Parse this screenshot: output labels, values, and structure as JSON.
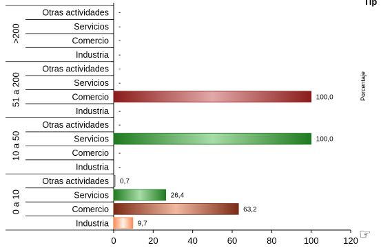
{
  "header": {
    "title_partial": "Tip"
  },
  "side": {
    "label": "Porcentaje"
  },
  "icons": {
    "cursor": "pointing-hand-icon"
  },
  "chart_data": {
    "type": "bar",
    "orientation": "horizontal",
    "title": "",
    "xlabel": "",
    "ylabel": "Porcentaje",
    "xlim": [
      0,
      120
    ],
    "x_ticks": [
      0,
      20,
      40,
      60,
      80,
      100,
      120
    ],
    "grid": false,
    "groups": [
      {
        "label": ">200",
        "rows": [
          {
            "category": "Otras actividades",
            "value": null,
            "label": "-"
          },
          {
            "category": "Servicios",
            "value": null,
            "label": "-"
          },
          {
            "category": "Comercio",
            "value": null,
            "label": "-"
          },
          {
            "category": "Industria",
            "value": null,
            "label": "-"
          }
        ]
      },
      {
        "label": "51 a 200",
        "rows": [
          {
            "category": "Otras actividades",
            "value": null,
            "label": "-"
          },
          {
            "category": "Servicios",
            "value": null,
            "label": "-"
          },
          {
            "category": "Comercio",
            "value": 100.0,
            "label": "100,0"
          },
          {
            "category": "Industria",
            "value": null,
            "label": "-"
          }
        ]
      },
      {
        "label": "10 a 50",
        "rows": [
          {
            "category": "Otras actividades",
            "value": null,
            "label": "-"
          },
          {
            "category": "Servicios",
            "value": 100.0,
            "label": "100,0"
          },
          {
            "category": "Comercio",
            "value": null,
            "label": "-"
          },
          {
            "category": "Industria",
            "value": null,
            "label": "-"
          }
        ]
      },
      {
        "label": "0 a 10",
        "rows": [
          {
            "category": "Otras actividades",
            "value": 0.7,
            "label": "0,7"
          },
          {
            "category": "Servicios",
            "value": 26.4,
            "label": "26,4"
          },
          {
            "category": "Comercio",
            "value": 63.2,
            "label": "63,2"
          },
          {
            "category": "Industria",
            "value": 9.7,
            "label": "9,7"
          }
        ]
      }
    ],
    "colors": {
      "Industria": [
        "#ff8a55",
        "#fff2e8"
      ],
      "Comercio": [
        "#8a1c1a",
        "#e2a8a8"
      ],
      "Servicios": [
        "#1f7a1f",
        "#a8dca8"
      ],
      "Otras actividades": [
        "#555555",
        "#dddddd"
      ],
      "comercio_group_0a10": [
        "#7a2a14",
        "#f0b8a0"
      ]
    }
  }
}
